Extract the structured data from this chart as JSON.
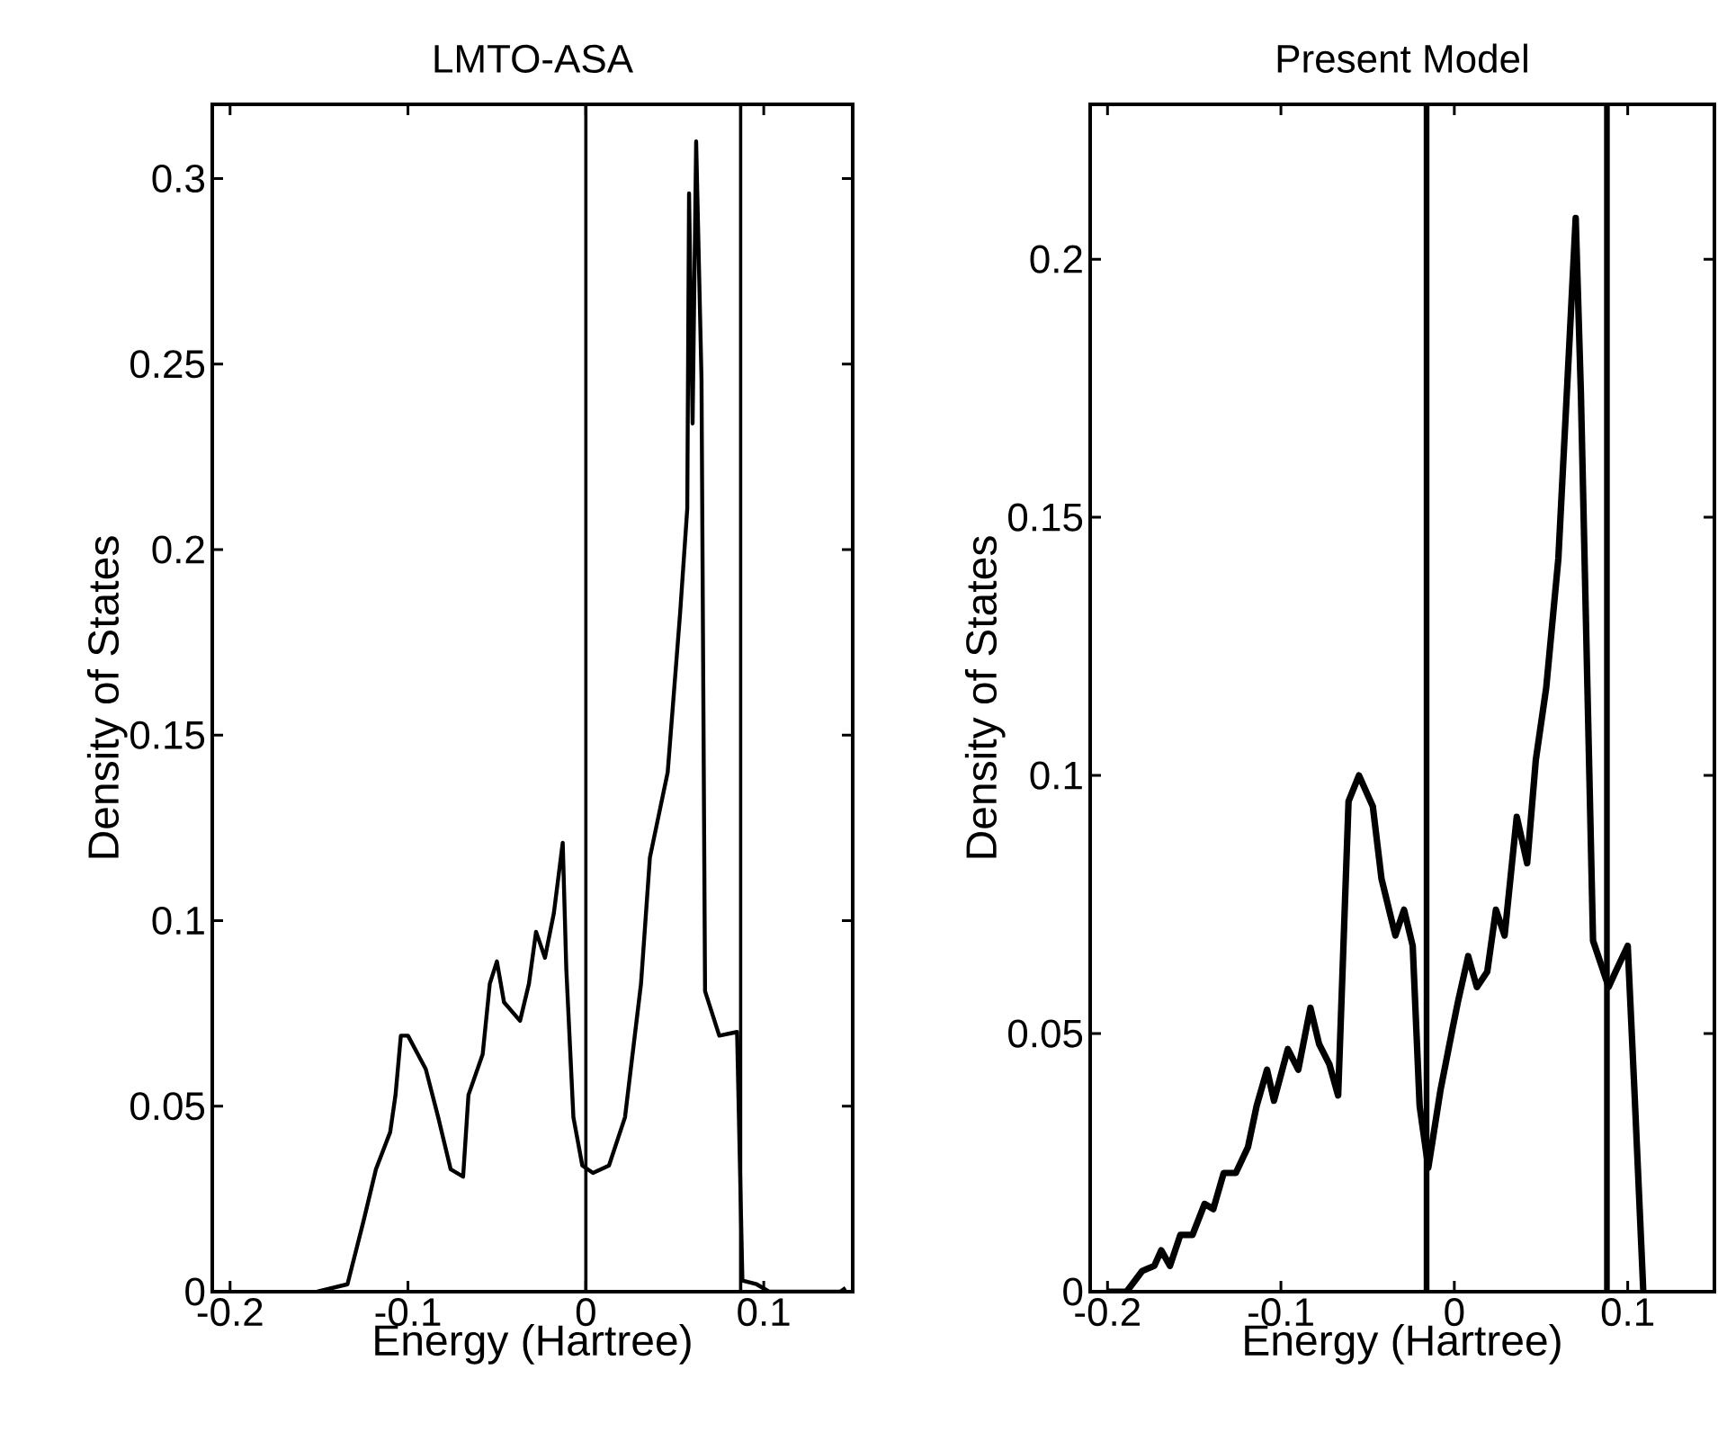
{
  "chart_data": [
    {
      "type": "line",
      "title": "LMTO-ASA",
      "xlabel": "Energy (Hartree)",
      "ylabel": "Density of States",
      "xlim": [
        -0.21,
        0.15
      ],
      "ylim": [
        0,
        0.32
      ],
      "xticks": [
        -0.2,
        -0.1,
        0,
        0.1
      ],
      "yticks": [
        0,
        0.05,
        0.1,
        0.15,
        0.2,
        0.25,
        0.3
      ],
      "grid": false,
      "marker": "none",
      "line_style": "solid",
      "ref_lines": [
        {
          "axis": "x",
          "value": 0
        },
        {
          "axis": "x",
          "value": 0.087
        }
      ],
      "series": [
        {
          "color": "#000000",
          "x": [
            -0.151,
            -0.134,
            -0.125,
            -0.118,
            -0.11,
            -0.107,
            -0.104,
            -0.1,
            -0.09,
            -0.083,
            -0.076,
            -0.069,
            -0.066,
            -0.058,
            -0.054,
            -0.05,
            -0.046,
            -0.037,
            -0.032,
            -0.028,
            -0.023,
            -0.018,
            -0.013,
            -0.011,
            -0.007,
            -0.002,
            0.004,
            0.013,
            0.022,
            0.031,
            0.036,
            0.046,
            0.053,
            0.057,
            0.058,
            0.06,
            0.062,
            0.065,
            0.067,
            0.075,
            0.085,
            0.088,
            0.096,
            0.103,
            0.143,
            0.146
          ],
          "values": [
            0,
            0.002,
            0.019,
            0.033,
            0.043,
            0.053,
            0.069,
            0.069,
            0.06,
            0.047,
            0.033,
            0.031,
            0.053,
            0.064,
            0.083,
            0.089,
            0.078,
            0.073,
            0.083,
            0.097,
            0.09,
            0.102,
            0.121,
            0.087,
            0.047,
            0.034,
            0.032,
            0.034,
            0.047,
            0.083,
            0.117,
            0.14,
            0.183,
            0.211,
            0.296,
            0.234,
            0.31,
            0.246,
            0.081,
            0.069,
            0.07,
            0.003,
            0.002,
            0,
            0,
            0.001
          ]
        }
      ]
    },
    {
      "type": "line",
      "title": "Present Model",
      "xlabel": "Energy (Hartree)",
      "ylabel": "Density of States",
      "xlim": [
        -0.21,
        0.15
      ],
      "ylim": [
        0,
        0.23
      ],
      "xticks": [
        -0.2,
        -0.1,
        0,
        0.1
      ],
      "yticks": [
        0,
        0.05,
        0.1,
        0.15,
        0.2
      ],
      "grid": false,
      "marker": "none",
      "line_style": "solid",
      "ref_lines": [
        {
          "axis": "x",
          "value": -0.016
        },
        {
          "axis": "x",
          "value": 0.088
        }
      ],
      "series": [
        {
          "color": "#000000",
          "x": [
            -0.2,
            -0.189,
            -0.18,
            -0.173,
            -0.169,
            -0.164,
            -0.158,
            -0.151,
            -0.144,
            -0.139,
            -0.133,
            -0.126,
            -0.119,
            -0.114,
            -0.108,
            -0.104,
            -0.096,
            -0.09,
            -0.083,
            -0.078,
            -0.072,
            -0.067,
            -0.061,
            -0.055,
            -0.047,
            -0.042,
            -0.034,
            -0.029,
            -0.024,
            -0.02,
            -0.015,
            -0.008,
            -0.001,
            0.002,
            0.008,
            0.013,
            0.019,
            0.024,
            0.029,
            0.036,
            0.042,
            0.047,
            0.053,
            0.06,
            0.067,
            0.07,
            0.073,
            0.08,
            0.089,
            0.093,
            0.1,
            0.104,
            0.109
          ],
          "values": [
            0,
            0,
            0.004,
            0.005,
            0.008,
            0.005,
            0.011,
            0.011,
            0.017,
            0.016,
            0.023,
            0.023,
            0.028,
            0.036,
            0.043,
            0.037,
            0.047,
            0.043,
            0.055,
            0.048,
            0.044,
            0.038,
            0.095,
            0.1,
            0.094,
            0.08,
            0.069,
            0.074,
            0.067,
            0.036,
            0.024,
            0.039,
            0.051,
            0.056,
            0.065,
            0.059,
            0.062,
            0.074,
            0.069,
            0.092,
            0.083,
            0.103,
            0.117,
            0.142,
            0.188,
            0.208,
            0.174,
            0.068,
            0.059,
            0.062,
            0.067,
            0.038,
            0
          ]
        }
      ]
    }
  ]
}
